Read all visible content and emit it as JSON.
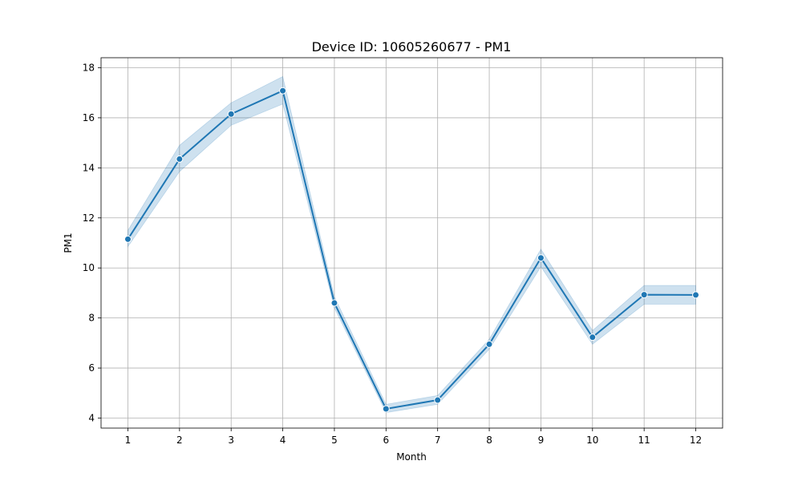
{
  "chart_data": {
    "type": "line",
    "title": "Device ID: 10605260677 - PM1",
    "xlabel": "Month",
    "ylabel": "PM1",
    "x": [
      1,
      2,
      3,
      4,
      5,
      6,
      7,
      8,
      9,
      10,
      11,
      12
    ],
    "xlim": [
      0.48,
      12.52
    ],
    "ylim": [
      3.6,
      18.4
    ],
    "xticks": [
      "1",
      "2",
      "3",
      "4",
      "5",
      "6",
      "7",
      "8",
      "9",
      "10",
      "11",
      "12"
    ],
    "yticks": [
      "4",
      "6",
      "8",
      "10",
      "12",
      "14",
      "16",
      "18"
    ],
    "grid": true,
    "series": [
      {
        "values": [
          11.15,
          14.35,
          16.15,
          17.08,
          8.6,
          4.37,
          4.72,
          6.95,
          10.4,
          7.23,
          8.93,
          8.92
        ],
        "ci_lower": [
          10.85,
          13.85,
          15.7,
          16.55,
          8.4,
          4.22,
          4.55,
          6.75,
          10.05,
          6.95,
          8.55,
          8.55
        ],
        "ci_upper": [
          11.5,
          14.9,
          16.6,
          17.65,
          8.85,
          4.55,
          4.9,
          7.15,
          10.75,
          7.5,
          9.3,
          9.3
        ],
        "color": "#1f77b4",
        "band_color": "#1f77b4",
        "marker": "circle"
      }
    ]
  }
}
